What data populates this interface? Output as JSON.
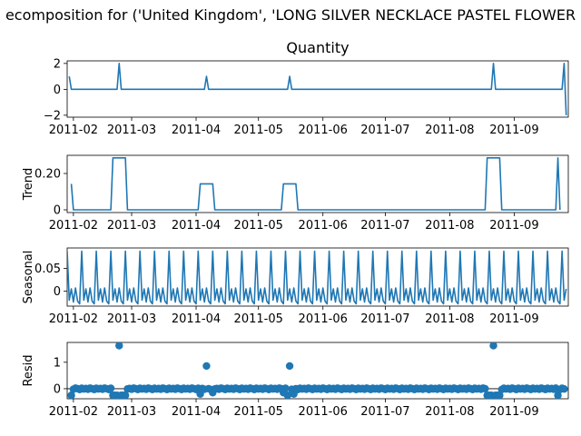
{
  "figure": {
    "suptitle": "ecomposition for ('United Kingdom', 'LONG SILVER NECKLACE PASTEL FLOWER"
  },
  "chart_data": [
    {
      "type": "line",
      "panel": "observed",
      "title": "Quantity",
      "ylabel": "",
      "ylim": [
        -2.15,
        2.2
      ],
      "yticks": [
        -2,
        0,
        2
      ],
      "xlim": [
        "2011-01-29",
        "2011-09-27"
      ],
      "xticks": [
        "2011-02",
        "2011-03",
        "2011-04",
        "2011-05",
        "2011-06",
        "2011-07",
        "2011-08",
        "2011-09"
      ],
      "points": [
        [
          "2011-01-30",
          1
        ],
        [
          "2011-01-31",
          0
        ],
        [
          "2011-02-22",
          0
        ],
        [
          "2011-02-23",
          2
        ],
        [
          "2011-02-24",
          0
        ],
        [
          "2011-04-05",
          0
        ],
        [
          "2011-04-06",
          1
        ],
        [
          "2011-04-07",
          0
        ],
        [
          "2011-05-15",
          0
        ],
        [
          "2011-05-16",
          1
        ],
        [
          "2011-05-17",
          0
        ],
        [
          "2011-08-21",
          0
        ],
        [
          "2011-08-22",
          2
        ],
        [
          "2011-08-23",
          0
        ],
        [
          "2011-09-24",
          0
        ],
        [
          "2011-09-25",
          2
        ],
        [
          "2011-09-26",
          -2
        ]
      ]
    },
    {
      "type": "line",
      "panel": "trend",
      "ylabel": "Trend",
      "ylim": [
        -0.015,
        0.3
      ],
      "yticks": [
        0.0,
        0.2
      ],
      "xlim": [
        "2011-01-29",
        "2011-09-27"
      ],
      "xticks": [
        "2011-02",
        "2011-03",
        "2011-04",
        "2011-05",
        "2011-06",
        "2011-07",
        "2011-08",
        "2011-09"
      ],
      "points": [
        [
          "2011-01-31",
          0.143
        ],
        [
          "2011-02-01",
          0
        ],
        [
          "2011-02-19",
          0
        ],
        [
          "2011-02-20",
          0.286
        ],
        [
          "2011-02-26",
          0.286
        ],
        [
          "2011-02-27",
          0
        ],
        [
          "2011-04-02",
          0
        ],
        [
          "2011-04-03",
          0.143
        ],
        [
          "2011-04-09",
          0.143
        ],
        [
          "2011-04-10",
          0
        ],
        [
          "2011-05-12",
          0
        ],
        [
          "2011-05-13",
          0.143
        ],
        [
          "2011-05-19",
          0.143
        ],
        [
          "2011-05-20",
          0
        ],
        [
          "2011-08-18",
          0
        ],
        [
          "2011-08-19",
          0.286
        ],
        [
          "2011-08-25",
          0.286
        ],
        [
          "2011-08-26",
          0
        ],
        [
          "2011-09-21",
          0
        ],
        [
          "2011-09-22",
          0.286
        ],
        [
          "2011-09-23",
          0
        ]
      ]
    },
    {
      "type": "line",
      "panel": "seasonal",
      "ylabel": "Seasonal",
      "ylim": [
        -0.033,
        0.095
      ],
      "yticks": [
        0.0,
        0.05
      ],
      "xlim": [
        "2011-01-29",
        "2011-09-27"
      ],
      "xticks": [
        "2011-02",
        "2011-03",
        "2011-04",
        "2011-05",
        "2011-06",
        "2011-07",
        "2011-08",
        "2011-09"
      ],
      "start": "2011-01-29",
      "end": "2011-09-26",
      "period": 7,
      "cycle_values": [
        0.088,
        -0.02,
        0.005,
        -0.024,
        0.007,
        -0.022,
        -0.028
      ]
    },
    {
      "type": "scatter",
      "panel": "resid",
      "ylabel": "Resid",
      "ylim": [
        -0.38,
        1.75
      ],
      "yticks": [
        0,
        1
      ],
      "xlim": [
        "2011-01-29",
        "2011-09-27"
      ],
      "xticks": [
        "2011-02",
        "2011-03",
        "2011-04",
        "2011-05",
        "2011-06",
        "2011-07",
        "2011-08",
        "2011-09"
      ],
      "baseline": 0,
      "start": "2011-01-31",
      "end": "2011-09-25",
      "default_value": 0,
      "outliers": [
        [
          "2011-01-31",
          -0.25
        ],
        [
          "2011-02-20",
          -0.25
        ],
        [
          "2011-02-21",
          -0.25
        ],
        [
          "2011-02-22",
          -0.25
        ],
        [
          "2011-02-23",
          1.63
        ],
        [
          "2011-02-24",
          -0.25
        ],
        [
          "2011-02-25",
          -0.25
        ],
        [
          "2011-02-26",
          -0.25
        ],
        [
          "2011-04-03",
          -0.2
        ],
        [
          "2011-04-06",
          0.86
        ],
        [
          "2011-04-09",
          -0.15
        ],
        [
          "2011-05-13",
          -0.15
        ],
        [
          "2011-05-15",
          -0.25
        ],
        [
          "2011-05-16",
          0.86
        ],
        [
          "2011-05-18",
          -0.2
        ],
        [
          "2011-08-19",
          -0.25
        ],
        [
          "2011-08-20",
          -0.25
        ],
        [
          "2011-08-21",
          -0.25
        ],
        [
          "2011-08-22",
          1.63
        ],
        [
          "2011-08-23",
          -0.25
        ],
        [
          "2011-08-24",
          -0.25
        ],
        [
          "2011-08-25",
          -0.25
        ],
        [
          "2011-09-22",
          -0.25
        ]
      ],
      "jitter": [
        0.01,
        -0.02,
        0.02,
        0.0,
        -0.03,
        0.015,
        -0.01
      ]
    }
  ]
}
